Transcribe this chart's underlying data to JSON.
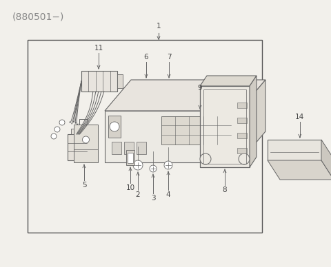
{
  "bg_color": "#f2f0eb",
  "box_color": "#555555",
  "line_color": "#666666",
  "title_text": "(880501−)",
  "title_fontsize": 10,
  "label_fontsize": 7.5,
  "label_color": "#444444"
}
